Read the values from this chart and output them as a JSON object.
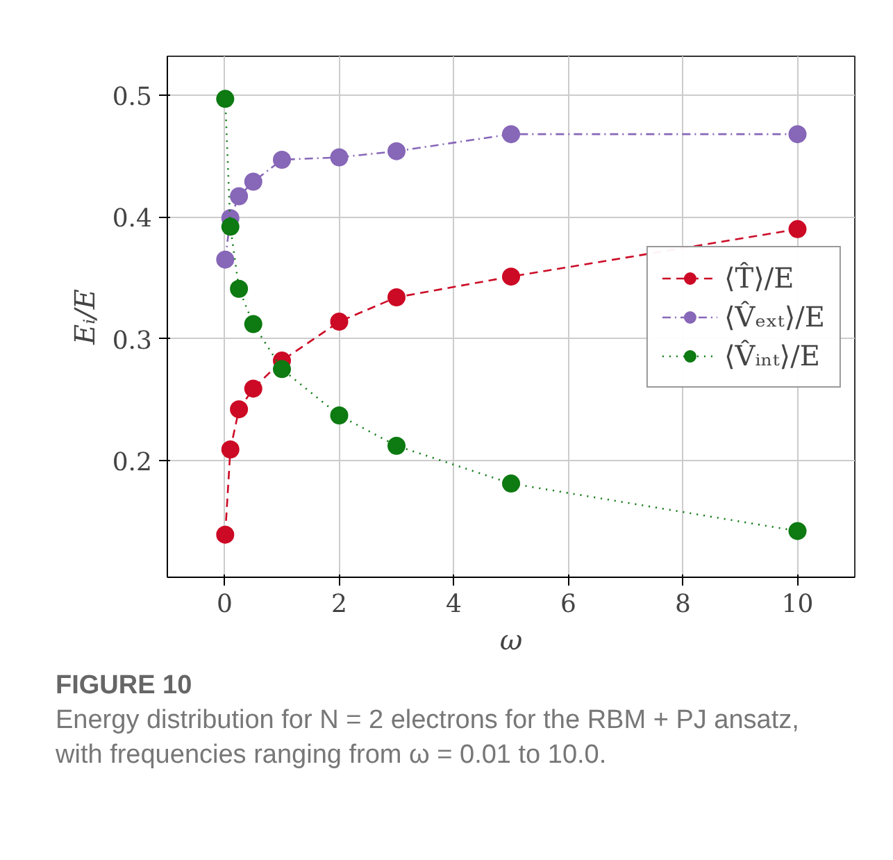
{
  "chart_data": {
    "type": "line",
    "xlabel": "ω",
    "ylabel": "Eᵢ/E",
    "x": [
      0.01,
      0.1,
      0.25,
      0.5,
      1,
      2,
      3,
      5,
      10
    ],
    "series": [
      {
        "name": "⟨T̂⟩/E",
        "color": "#cc0a25",
        "line_style": "dashed",
        "values": [
          0.139,
          0.209,
          0.242,
          0.259,
          0.282,
          0.314,
          0.334,
          0.351,
          0.39
        ]
      },
      {
        "name": "⟨V̂ₑₓₜ⟩/E",
        "color": "#8767b8",
        "line_style": "dashdot",
        "values": [
          0.365,
          0.399,
          0.417,
          0.429,
          0.447,
          0.449,
          0.454,
          0.468,
          0.468
        ]
      },
      {
        "name": "⟨V̂ᵢₙₜ⟩/E",
        "color": "#0d7a12",
        "line_style": "dotted",
        "values": [
          0.497,
          0.392,
          0.341,
          0.312,
          0.275,
          0.237,
          0.212,
          0.181,
          0.142
        ]
      }
    ],
    "xlim": [
      -1,
      11
    ],
    "ylim": [
      0.104,
      0.532
    ],
    "xticks": [
      0,
      2,
      4,
      6,
      8,
      10
    ],
    "yticks": [
      0.2,
      0.3,
      0.4,
      0.5
    ],
    "grid": true,
    "legend": "right",
    "marker": "circle",
    "annotations": [
      "FIGURE 10",
      "Energy distribution for N = 2 electrons for the RBM + PJ ansatz, with frequencies ranging from ω = 0.01 to 10.0."
    ]
  }
}
